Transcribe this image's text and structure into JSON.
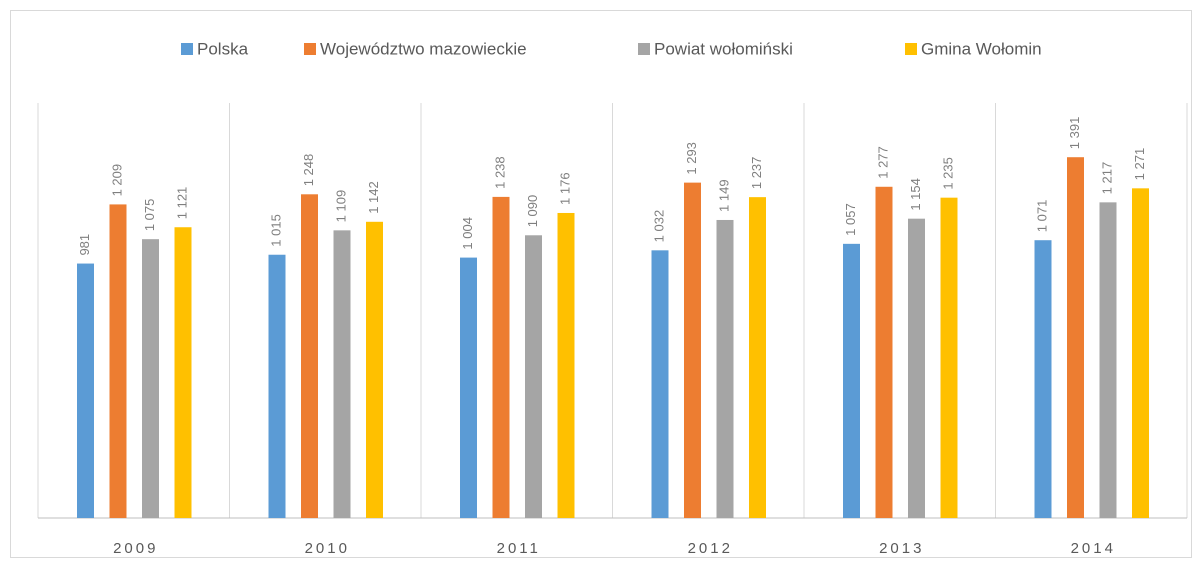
{
  "chart_data": {
    "type": "bar",
    "categories": [
      "2009",
      "2010",
      "2011",
      "2012",
      "2013",
      "2014"
    ],
    "series": [
      {
        "name": "Polska",
        "color": "#5b9bd5",
        "values": [
          981,
          1015,
          1004,
          1032,
          1057,
          1071
        ],
        "value_labels": [
          "981",
          "1 015",
          "1 004",
          "1 032",
          "1 057",
          "1 071"
        ]
      },
      {
        "name": "Województwo mazowieckie",
        "color": "#ed7d31",
        "values": [
          1209,
          1248,
          1238,
          1293,
          1277,
          1391
        ],
        "value_labels": [
          "1 209",
          "1 248",
          "1 238",
          "1 293",
          "1 277",
          "1 391"
        ]
      },
      {
        "name": "Powiat wołomiński",
        "color": "#a5a5a5",
        "values": [
          1075,
          1109,
          1090,
          1149,
          1154,
          1217
        ],
        "value_labels": [
          "1 075",
          "1 109",
          "1 090",
          "1 149",
          "1 154",
          "1 217"
        ]
      },
      {
        "name": "Gmina Wołomin",
        "color": "#ffc000",
        "values": [
          1121,
          1142,
          1176,
          1237,
          1235,
          1271
        ],
        "value_labels": [
          "1 121",
          "1 142",
          "1 176",
          "1 237",
          "1 235",
          "1 271"
        ]
      }
    ],
    "ylim": [
      0,
      1600
    ],
    "legend": "top"
  }
}
